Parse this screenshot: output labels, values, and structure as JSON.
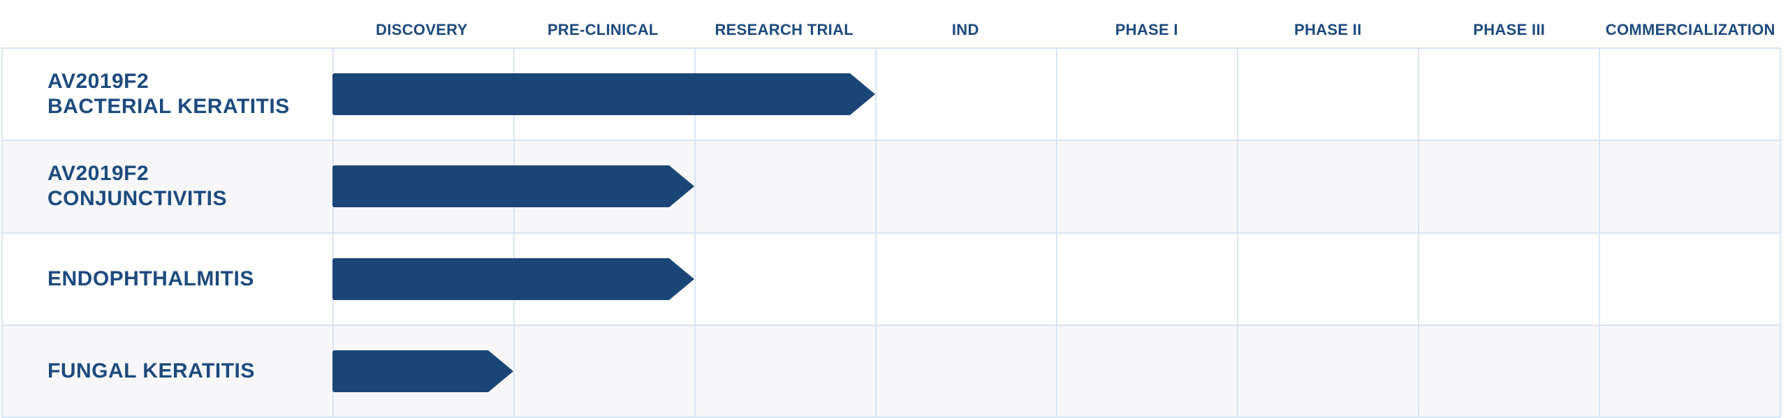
{
  "colors": {
    "text_navy": "#1D4A7D",
    "bar_navy": "#1B4577",
    "grid_line": "#D9E5F5",
    "row_alt_bg": "#F7F7F9",
    "background": "#FFFFFF"
  },
  "header": {
    "phases": [
      "DISCOVERY",
      "PRE-CLINICAL",
      "RESEARCH TRIAL",
      "IND",
      "PHASE I",
      "PHASE II",
      "PHASE III",
      "COMMERCIALIZATION"
    ]
  },
  "rows": [
    {
      "label_line1": "AV2019F2",
      "label_line2": "BACTERIAL KERATITIS",
      "span_columns": 3,
      "start_phase": "DISCOVERY",
      "end_phase": "RESEARCH TRIAL"
    },
    {
      "label_line1": "AV2019F2",
      "label_line2": "CONJUNCTIVITIS",
      "span_columns": 2,
      "start_phase": "DISCOVERY",
      "end_phase": "PRE-CLINICAL"
    },
    {
      "label_line1": "ENDOPHTHALMITIS",
      "label_line2": "",
      "span_columns": 2,
      "start_phase": "DISCOVERY",
      "end_phase": "PRE-CLINICAL"
    },
    {
      "label_line1": "FUNGAL KERATITIS",
      "label_line2": "",
      "span_columns": 1,
      "start_phase": "DISCOVERY",
      "end_phase": "DISCOVERY"
    }
  ],
  "chart_data": {
    "type": "bar",
    "subtype": "pipeline_gantt",
    "title": "",
    "phases": [
      "DISCOVERY",
      "PRE-CLINICAL",
      "RESEARCH TRIAL",
      "IND",
      "PHASE I",
      "PHASE II",
      "PHASE III",
      "COMMERCIALIZATION"
    ],
    "categories": [
      "AV2019F2 BACTERIAL KERATITIS",
      "AV2019F2 CONJUNCTIVITIS",
      "ENDOPHTHALMITIS",
      "FUNGAL KERATITIS"
    ],
    "series": [
      {
        "name": "phases_reached",
        "values": [
          3,
          2,
          2,
          1
        ]
      }
    ],
    "value_meaning": "number of phase columns each arrow bar spans, starting at DISCOVERY",
    "xlim": [
      0,
      8
    ],
    "bar_color": "#1B4577",
    "grid": true,
    "legend": null
  }
}
